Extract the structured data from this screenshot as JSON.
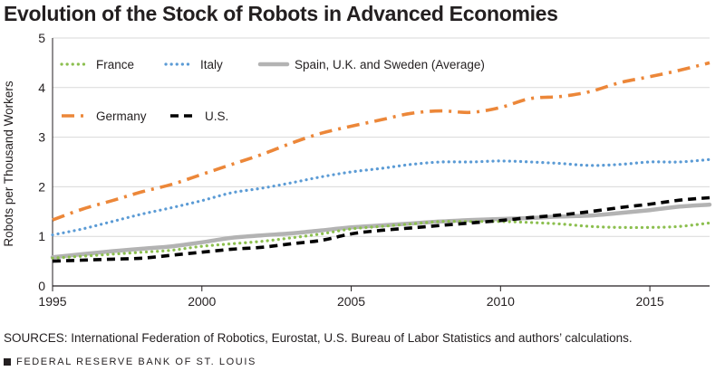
{
  "title": "Evolution of the Stock of Robots in Advanced Economies",
  "sources": "SOURCES: International Federation of Robotics, Eurostat, U.S. Bureau of Labor Statistics and authors’ calculations.",
  "footer": "FEDERAL RESERVE BANK OF ST. LOUIS",
  "chart_data": {
    "type": "line",
    "title": "Evolution of the Stock of Robots in Advanced Economies",
    "xlabel": "",
    "ylabel": "Robots per Thousand Workers",
    "xlim": [
      1995,
      2017
    ],
    "ylim": [
      0,
      5
    ],
    "xticks": [
      1995,
      2000,
      2005,
      2010,
      2015
    ],
    "yticks": [
      0,
      1,
      2,
      3,
      4,
      5
    ],
    "grid": "horizontal",
    "legend_position": "top-left",
    "series": [
      {
        "name": "France",
        "color": "#8cbf4f",
        "style": "dotted",
        "x": [
          1995,
          1996,
          1997,
          1998,
          1999,
          2000,
          2001,
          2002,
          2003,
          2004,
          2005,
          2006,
          2007,
          2008,
          2009,
          2010,
          2011,
          2012,
          2013,
          2014,
          2015,
          2016,
          2017
        ],
        "values": [
          0.56,
          0.6,
          0.64,
          0.68,
          0.72,
          0.8,
          0.85,
          0.9,
          0.97,
          1.05,
          1.15,
          1.2,
          1.25,
          1.3,
          1.3,
          1.3,
          1.28,
          1.25,
          1.2,
          1.18,
          1.18,
          1.2,
          1.27
        ]
      },
      {
        "name": "Italy",
        "color": "#5b9bd5",
        "style": "dotted",
        "x": [
          1995,
          1996,
          1997,
          1998,
          1999,
          2000,
          2001,
          2002,
          2003,
          2004,
          2005,
          2006,
          2007,
          2008,
          2009,
          2010,
          2011,
          2012,
          2013,
          2014,
          2015,
          2016,
          2017
        ],
        "values": [
          1.03,
          1.15,
          1.3,
          1.45,
          1.58,
          1.72,
          1.88,
          1.97,
          2.08,
          2.2,
          2.3,
          2.37,
          2.45,
          2.5,
          2.5,
          2.52,
          2.5,
          2.47,
          2.43,
          2.45,
          2.5,
          2.5,
          2.55
        ]
      },
      {
        "name": "Spain, U.K. and Sweden (Average)",
        "color": "#b3b3b3",
        "style": "solid",
        "x": [
          1995,
          1996,
          1997,
          1998,
          1999,
          2000,
          2001,
          2002,
          2003,
          2004,
          2005,
          2006,
          2007,
          2008,
          2009,
          2010,
          2011,
          2012,
          2013,
          2014,
          2015,
          2016,
          2017
        ],
        "values": [
          0.58,
          0.64,
          0.7,
          0.75,
          0.8,
          0.88,
          0.97,
          1.02,
          1.06,
          1.12,
          1.18,
          1.22,
          1.26,
          1.3,
          1.33,
          1.35,
          1.37,
          1.4,
          1.42,
          1.47,
          1.53,
          1.6,
          1.64
        ]
      },
      {
        "name": "Germany",
        "color": "#ec8739",
        "style": "dashdot",
        "x": [
          1995,
          1996,
          1997,
          1998,
          1999,
          2000,
          2001,
          2002,
          2003,
          2004,
          2005,
          2006,
          2007,
          2008,
          2009,
          2010,
          2011,
          2012,
          2013,
          2014,
          2015,
          2016,
          2017
        ],
        "values": [
          1.33,
          1.55,
          1.72,
          1.9,
          2.05,
          2.25,
          2.45,
          2.65,
          2.88,
          3.08,
          3.22,
          3.35,
          3.48,
          3.53,
          3.5,
          3.6,
          3.78,
          3.82,
          3.92,
          4.1,
          4.22,
          4.35,
          4.5
        ]
      },
      {
        "name": "U.S.",
        "color": "#000000",
        "style": "dashed",
        "x": [
          1995,
          1996,
          1997,
          1998,
          1999,
          2000,
          2001,
          2002,
          2003,
          2004,
          2005,
          2006,
          2007,
          2008,
          2009,
          2010,
          2011,
          2012,
          2013,
          2014,
          2015,
          2016,
          2017
        ],
        "values": [
          0.5,
          0.52,
          0.54,
          0.56,
          0.62,
          0.68,
          0.74,
          0.78,
          0.85,
          0.92,
          1.05,
          1.12,
          1.17,
          1.22,
          1.27,
          1.32,
          1.38,
          1.43,
          1.5,
          1.58,
          1.65,
          1.73,
          1.78
        ]
      }
    ]
  }
}
